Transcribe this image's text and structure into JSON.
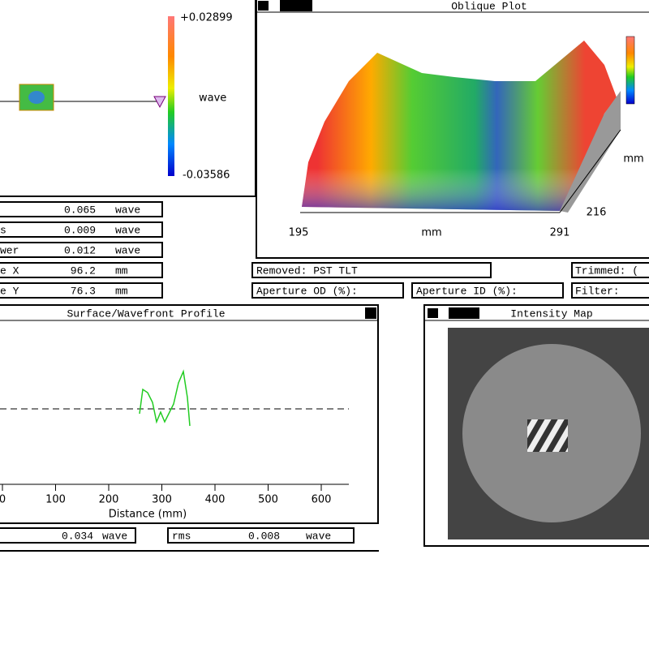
{
  "colorbar": {
    "max": "+0.02899",
    "unit": "wave",
    "min": "-0.03586"
  },
  "results": [
    {
      "value": "0.065",
      "unit": "wave"
    },
    {
      "label": "s",
      "value": "0.009",
      "unit": "wave"
    },
    {
      "label": "wer",
      "value": "0.012",
      "unit": "wave"
    },
    {
      "label": "e X",
      "value": "96.2",
      "unit": "mm"
    },
    {
      "label": "e Y",
      "value": "76.3",
      "unit": "mm"
    }
  ],
  "oblique": {
    "logo": "zygo",
    "title": "Oblique Plot",
    "x_start": "195",
    "x_unit": "mm",
    "x_end": "291",
    "y_end": "216",
    "y_unit": "mm"
  },
  "settings": {
    "removed": "Removed: PST TLT",
    "trimmed": "Trimmed: (",
    "aperture_od": "Aperture OD (%):",
    "aperture_id": "Aperture ID (%):",
    "filter": "Filter:"
  },
  "profile": {
    "title": "Surface/Wavefront Profile",
    "xticks": [
      0,
      100,
      200,
      300,
      400,
      500,
      600
    ],
    "xlabel": "Distance (mm)",
    "stats": [
      {
        "value": "0.034",
        "unit": "wave"
      },
      {
        "label": "rms",
        "value": "0.008",
        "unit": "wave"
      }
    ]
  },
  "intensity": {
    "logo": "zygo",
    "title": "Intensity Map"
  }
}
